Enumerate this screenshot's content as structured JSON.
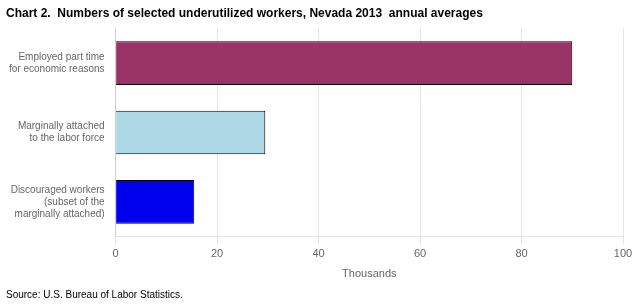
{
  "chart_data": {
    "type": "bar",
    "orientation": "horizontal",
    "title": "Chart 2.  Numbers of selected underutilized workers, Nevada 2013  annual averages",
    "categories": [
      "Discouraged workers\n(subset of the\nmarginally attached)",
      "Marginally attached\nto the labor force",
      "Employed part time\nfor economic reasons"
    ],
    "values": [
      15.5,
      29.5,
      90.0
    ],
    "colors": [
      "#0000ee",
      "#add8e6",
      "#993366"
    ],
    "xlabel": "Thousands",
    "xlim": [
      0,
      100
    ],
    "xticks": [
      0,
      20,
      40,
      60,
      80,
      100
    ],
    "grid": true,
    "source": "Source: U.S. Bureau of Labor Statistics."
  }
}
